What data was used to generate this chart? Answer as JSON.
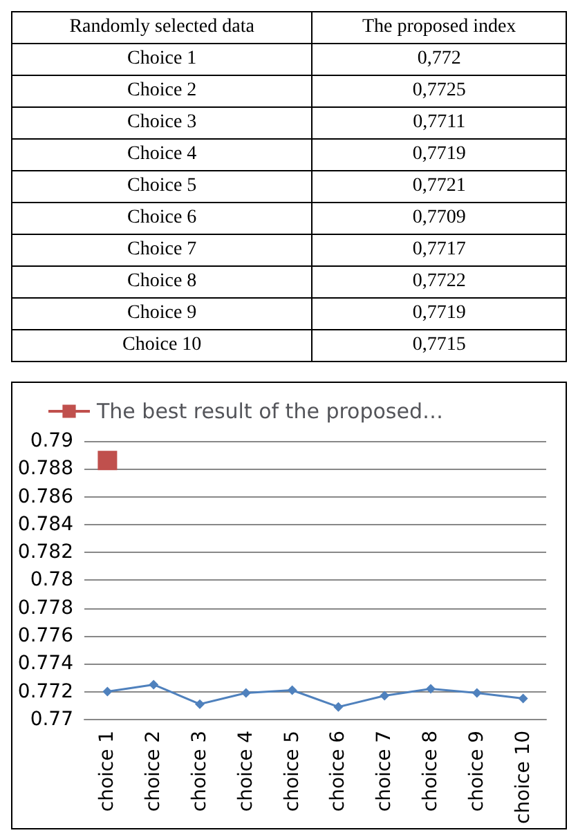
{
  "chart_data": [
    {
      "type": "other",
      "xlabel": "Randomly selected data",
      "ylabel": "The proposed index",
      "categories": [
        "Choice 1",
        "Choice 2",
        "Choice 3",
        "Choice 4",
        "Choice 5",
        "Choice 6",
        "Choice 7",
        "Choice 8",
        "Choice 9",
        "Choice 10"
      ],
      "value_labels": [
        "0,772",
        "0,7725",
        "0,7711",
        "0,7719",
        "0,7721",
        "0,7709",
        "0,7717",
        "0,7722",
        "0,7719",
        "0,7715"
      ]
    },
    {
      "type": "line",
      "categories": [
        "choice 1",
        "choice 2",
        "choice 3",
        "choice 4",
        "choice 5",
        "choice 6",
        "choice 7",
        "choice 8",
        "choice 9",
        "choice 10"
      ],
      "series": [
        {
          "color": "#4f81bd",
          "marker": "diamond",
          "values": [
            0.772,
            0.7725,
            0.7711,
            0.7719,
            0.7721,
            0.7709,
            0.7717,
            0.7722,
            0.7719,
            0.7715
          ]
        },
        {
          "name": "The best result of the proposed…",
          "color": "#c0504d",
          "marker": "square",
          "values": [
            0.7886,
            null,
            null,
            null,
            null,
            null,
            null,
            null,
            null,
            null
          ]
        }
      ],
      "ylim": [
        0.77,
        0.79
      ],
      "yticks": [
        0.77,
        0.772,
        0.774,
        0.776,
        0.778,
        0.78,
        0.782,
        0.784,
        0.786,
        0.788,
        0.79
      ],
      "grid": "y",
      "legend": "top"
    }
  ]
}
